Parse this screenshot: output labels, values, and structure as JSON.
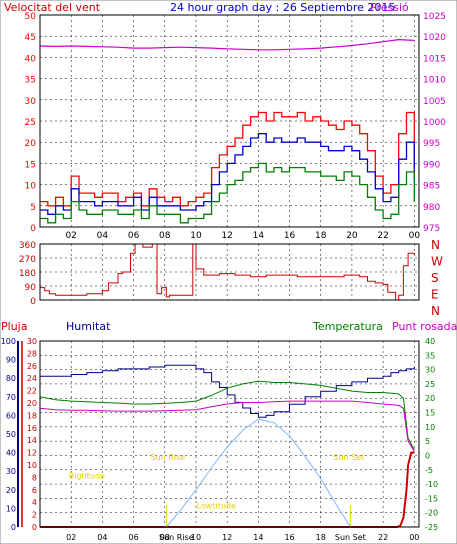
{
  "colors": {
    "background": "#ffffff",
    "frame": "#000000",
    "grid": "#000000",
    "wind": "#ff0000",
    "gust": "#ff0000",
    "avgwind": "#0000cc",
    "wind_green": "#008000",
    "pressure": "#cc00cc",
    "direction": "#cc0000",
    "rain": "#cc0000",
    "humidity": "#00008b",
    "temperature": "#008000",
    "dewpoint": "#cc00cc",
    "sun": "#7fb7ff",
    "annotation": "#e8d000"
  },
  "chart_data": [
    {
      "id": "wind-pressure",
      "type": "line",
      "title": "24 hour graph day : 26 Septiembre 2015",
      "left_label": "Velocitat del vent",
      "right_label": "Pressió",
      "xlabel": "",
      "x_ticks": [
        "02",
        "04",
        "06",
        "08",
        "10",
        "12",
        "14",
        "16",
        "18",
        "20",
        "22",
        "00"
      ],
      "xlim": [
        0,
        24.3
      ],
      "ylim_left": [
        0,
        50
      ],
      "y_ticks_left": [
        "0",
        "5",
        "10",
        "15",
        "20",
        "25",
        "30",
        "35",
        "40",
        "45",
        "50"
      ],
      "ylim_right": [
        975,
        1025
      ],
      "y_ticks_right": [
        "975",
        "980",
        "985",
        "990",
        "995",
        "1000",
        "1005",
        "1010",
        "1015",
        "1020",
        "1025"
      ],
      "grid": true,
      "series": [
        {
          "key": "gust",
          "axis": "left",
          "style": "step",
          "color": "#ff0000",
          "x": [
            0,
            0.5,
            1,
            1.5,
            2,
            2.5,
            3,
            3.5,
            4,
            4.5,
            5,
            5.5,
            6,
            6.5,
            7,
            7.5,
            8,
            8.5,
            9,
            9.5,
            10,
            10.5,
            11,
            11.5,
            12,
            12.5,
            13,
            13.5,
            14,
            14.5,
            15,
            15.5,
            16,
            16.5,
            17,
            17.5,
            18,
            18.5,
            19,
            19.5,
            20,
            20.5,
            21,
            21.5,
            22,
            22.5,
            23,
            23.5,
            24
          ],
          "values": [
            6,
            5,
            7,
            5,
            12,
            8,
            8,
            7,
            8,
            8,
            6,
            7,
            8,
            5,
            9,
            7,
            6,
            7,
            5,
            6,
            7,
            8,
            14,
            17,
            19,
            21,
            24,
            26,
            27,
            25,
            27,
            26,
            26,
            27,
            25,
            26,
            25,
            24,
            23,
            25,
            24,
            22,
            18,
            12,
            8,
            10,
            22,
            27,
            14
          ]
        },
        {
          "key": "avg",
          "axis": "left",
          "style": "step",
          "color": "#0000cc",
          "x": [
            0,
            0.5,
            1,
            1.5,
            2,
            2.5,
            3,
            3.5,
            4,
            4.5,
            5,
            5.5,
            6,
            6.5,
            7,
            7.5,
            8,
            8.5,
            9,
            9.5,
            10,
            10.5,
            11,
            11.5,
            12,
            12.5,
            13,
            13.5,
            14,
            14.5,
            15,
            15.5,
            16,
            16.5,
            17,
            17.5,
            18,
            18.5,
            19,
            19.5,
            20,
            20.5,
            21,
            21.5,
            22,
            22.5,
            23,
            23.5,
            24
          ],
          "values": [
            4,
            3,
            5,
            4,
            9,
            6,
            6,
            5,
            6,
            6,
            5,
            5,
            7,
            4,
            7,
            5,
            5,
            5,
            4,
            4,
            5,
            6,
            10,
            13,
            15,
            17,
            19,
            21,
            22,
            20,
            21,
            20,
            20,
            21,
            20,
            20,
            19,
            18,
            18,
            19,
            18,
            16,
            13,
            9,
            6,
            7,
            16,
            20,
            11
          ]
        },
        {
          "key": "speed",
          "axis": "left",
          "style": "step",
          "color": "#008000",
          "x": [
            0,
            0.5,
            1,
            1.5,
            2,
            2.5,
            3,
            3.5,
            4,
            4.5,
            5,
            5.5,
            6,
            6.5,
            7,
            7.5,
            8,
            8.5,
            9,
            9.5,
            10,
            10.5,
            11,
            11.5,
            12,
            12.5,
            13,
            13.5,
            14,
            14.5,
            15,
            15.5,
            16,
            16.5,
            17,
            17.5,
            18,
            18.5,
            19,
            19.5,
            20,
            20.5,
            21,
            21.5,
            22,
            22.5,
            23,
            23.5,
            24
          ],
          "values": [
            2,
            1,
            3,
            2,
            6,
            4,
            3,
            3,
            4,
            4,
            3,
            3,
            4,
            2,
            5,
            3,
            3,
            3,
            1,
            2,
            2,
            3,
            6,
            8,
            10,
            11,
            13,
            14,
            15,
            13,
            14,
            13,
            14,
            14,
            13,
            13,
            12,
            12,
            11,
            13,
            12,
            10,
            7,
            4,
            2,
            3,
            10,
            13,
            6
          ]
        },
        {
          "key": "pressure",
          "axis": "right",
          "style": "line",
          "color": "#cc00cc",
          "x": [
            0,
            1,
            2,
            3,
            4,
            5,
            6,
            7,
            8,
            9,
            10,
            11,
            12,
            13,
            14,
            15,
            16,
            17,
            18,
            19,
            20,
            21,
            22,
            23,
            24
          ],
          "values": [
            1017.7,
            1017.6,
            1017.7,
            1017.6,
            1017.5,
            1017.4,
            1017.2,
            1017.2,
            1017.3,
            1017.4,
            1017.3,
            1017.2,
            1017.0,
            1016.9,
            1016.8,
            1016.8,
            1016.9,
            1017.0,
            1017.2,
            1017.5,
            1017.8,
            1018.2,
            1018.7,
            1019.2,
            1019.0
          ]
        }
      ]
    },
    {
      "id": "direction",
      "type": "line",
      "xlabel": "",
      "x_ticks": [
        "02",
        "04",
        "06",
        "08",
        "10",
        "12",
        "14",
        "16",
        "18",
        "20",
        "22",
        "00"
      ],
      "xlim": [
        0,
        24.3
      ],
      "ylim_left": [
        0,
        360
      ],
      "y_ticks_left": [
        "0",
        "90",
        "180",
        "270",
        "360"
      ],
      "compass_labels": [
        "N",
        "W",
        "S",
        "E",
        "N"
      ],
      "grid": true,
      "series": [
        {
          "key": "dir",
          "axis": "left",
          "style": "step",
          "color": "#cc0000",
          "x": [
            0,
            0.3,
            0.6,
            1.0,
            2.0,
            3.0,
            4.0,
            4.4,
            5.0,
            5.3,
            5.8,
            6.1,
            6.6,
            7.2,
            7.5,
            7.8,
            8.1,
            8.3,
            9.5,
            9.8,
            10.0,
            10.5,
            11.5,
            12.5,
            13.5,
            14.5,
            15.5,
            16.5,
            17.5,
            18.5,
            19.5,
            20.5,
            21.0,
            21.5,
            22.0,
            22.3,
            22.8,
            23.0,
            23.3,
            23.6,
            24.0
          ],
          "values": [
            80,
            60,
            40,
            30,
            30,
            40,
            60,
            110,
            170,
            180,
            300,
            360,
            340,
            360,
            40,
            80,
            20,
            30,
            30,
            360,
            200,
            160,
            170,
            160,
            150,
            160,
            160,
            150,
            150,
            150,
            160,
            150,
            120,
            110,
            100,
            50,
            0,
            30,
            220,
            300,
            290
          ]
        }
      ]
    },
    {
      "id": "temp-hum-rain",
      "type": "line",
      "labels": {
        "rain": "Pluja",
        "humidity": "Humitat",
        "temperature": "Temperatura",
        "dewpoint": "Punt rosada"
      },
      "x_ticks": [
        "02",
        "04",
        "06",
        "08",
        "Sun Rise",
        "10",
        "12",
        "14",
        "16",
        "18",
        "Sun Set",
        "22",
        "00"
      ],
      "xlim": [
        0,
        24.3
      ],
      "ylim_humidity": [
        0,
        100
      ],
      "y_ticks_humidity": [
        "0",
        "10",
        "20",
        "30",
        "40",
        "50",
        "60",
        "70",
        "80",
        "90",
        "100"
      ],
      "ylim_rain": [
        0,
        30
      ],
      "y_ticks_rain": [
        "0",
        "2",
        "4",
        "6",
        "8",
        "10",
        "12",
        "14",
        "16",
        "18",
        "20",
        "22",
        "24",
        "26",
        "28",
        "30"
      ],
      "ylim_temp": [
        -25,
        40
      ],
      "y_ticks_temp": [
        "-25",
        "-20",
        "-15",
        "-10",
        "-5",
        "0",
        "5",
        "10",
        "15",
        "20",
        "25",
        "30",
        "35",
        "40"
      ],
      "annotations": [
        {
          "text": "Bigtitude",
          "x": 3.0,
          "y": 26
        },
        {
          "text": "Sun Rise",
          "x": 8.2,
          "y": 36
        },
        {
          "text": "Lowtitude",
          "x": 11.3,
          "y": 10
        },
        {
          "text": "Sun Set",
          "x": 19.8,
          "y": 36
        }
      ],
      "grid": true,
      "series": [
        {
          "key": "humidity",
          "axis": "humidity",
          "style": "step",
          "color": "#00008b",
          "x": [
            0,
            0.5,
            1,
            2,
            3,
            4,
            5,
            6,
            7,
            8,
            9,
            10,
            10.5,
            11,
            11.5,
            12,
            12.5,
            13,
            13.5,
            14,
            14.5,
            15,
            16,
            17,
            18,
            19,
            20,
            21,
            22,
            22.5,
            23,
            23.5,
            24
          ],
          "values": [
            81,
            81,
            81,
            82,
            83,
            84,
            85,
            85,
            86,
            87,
            87,
            85,
            83,
            78,
            75,
            71,
            67,
            64,
            61,
            59,
            60,
            62,
            66,
            70,
            73,
            76,
            78,
            80,
            81,
            83,
            84,
            85,
            86
          ]
        },
        {
          "key": "temperature",
          "axis": "temp",
          "style": "line",
          "color": "#008000",
          "x": [
            0,
            1,
            2,
            3,
            4,
            5,
            6,
            7,
            8,
            9,
            10,
            11,
            12,
            13,
            14,
            15,
            16,
            17,
            18,
            19,
            20,
            21,
            22,
            23,
            23.3,
            23.6,
            24.0
          ],
          "values": [
            20.5,
            19.5,
            19.0,
            18.8,
            18.5,
            18.3,
            18.0,
            18.0,
            18.2,
            18.5,
            19.0,
            21.0,
            23.5,
            25.0,
            26.0,
            25.5,
            25.5,
            25.0,
            24.5,
            23.5,
            22.5,
            22.0,
            22.0,
            21.5,
            20.0,
            6.0,
            2.0
          ]
        },
        {
          "key": "dewpoint",
          "axis": "temp",
          "style": "line",
          "color": "#cc00cc",
          "x": [
            0,
            1,
            2,
            3,
            4,
            5,
            6,
            7,
            8,
            9,
            10,
            11,
            12,
            13,
            14,
            15,
            16,
            17,
            18,
            19,
            20,
            21,
            22,
            23,
            23.3,
            23.6,
            24.0
          ],
          "values": [
            16.5,
            16.0,
            15.8,
            15.8,
            15.6,
            15.5,
            15.5,
            15.5,
            15.6,
            15.8,
            16.0,
            17.0,
            18.0,
            18.5,
            18.5,
            18.8,
            19.0,
            19.0,
            19.0,
            19.0,
            19.0,
            18.5,
            18.0,
            17.5,
            16.5,
            5.0,
            1.5
          ]
        },
        {
          "key": "rain",
          "axis": "rain",
          "style": "line",
          "color": "#cc0000",
          "x": [
            0,
            22.9,
            23.1,
            23.3,
            23.5,
            23.6,
            23.8,
            24.0
          ],
          "values": [
            0,
            0,
            0.2,
            1.5,
            6.0,
            10.0,
            12.0,
            12.0
          ]
        },
        {
          "key": "sun",
          "axis": "humidity",
          "style": "line",
          "color": "#7fb7ff",
          "x": [
            8.1,
            9,
            10,
            11,
            12,
            13,
            14,
            15,
            16,
            17,
            18,
            19,
            19.9
          ],
          "values": [
            0,
            9,
            20,
            32,
            43,
            52,
            58,
            56,
            49,
            38,
            26,
            12,
            0
          ]
        }
      ]
    }
  ]
}
